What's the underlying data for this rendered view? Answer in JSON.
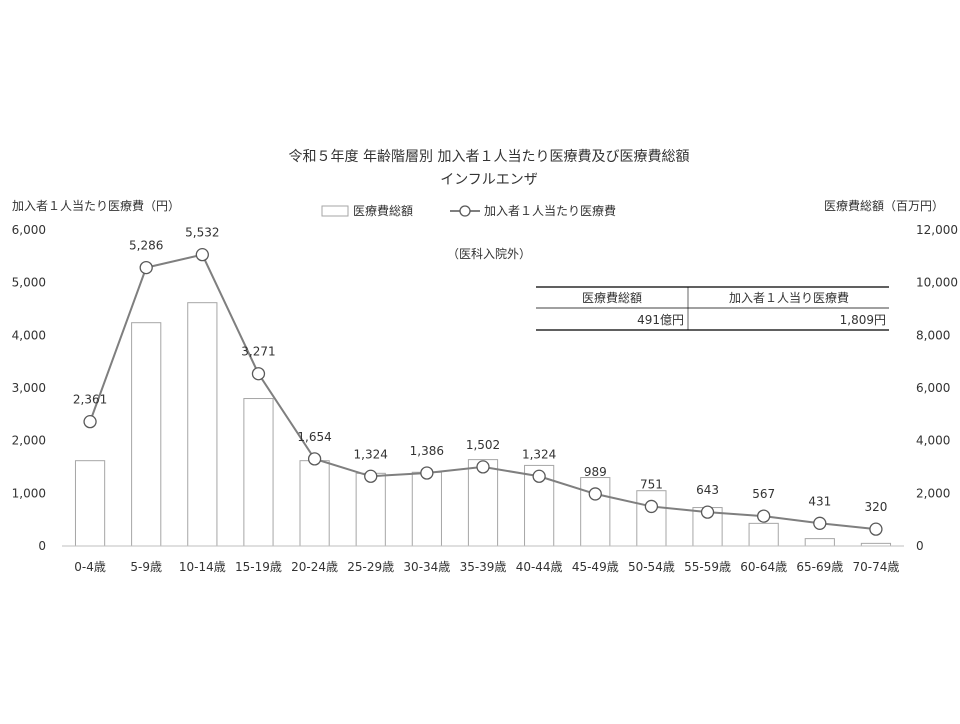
{
  "chart_data": {
    "type": "bar+line",
    "title": "令和５年度 年齢階層別 加入者１人当たり医療費及び医療費総額",
    "subtitle": "インフルエンザ",
    "note": "（医科入院外）",
    "y_left_label": "加入者１人当たり医療費（円）",
    "y_right_label": "医療費総額（百万円）",
    "y_left_lim": [
      0,
      6000
    ],
    "y_right_lim": [
      0,
      12000
    ],
    "y_left_ticks": [
      "0",
      "1,000",
      "2,000",
      "3,000",
      "4,000",
      "5,000",
      "6,000"
    ],
    "y_right_ticks": [
      "0",
      "2,000",
      "4,000",
      "6,000",
      "8,000",
      "10,000",
      "12,000"
    ],
    "categories": [
      "0-4歳",
      "5-9歳",
      "10-14歳",
      "15-19歳",
      "20-24歳",
      "25-29歳",
      "30-34歳",
      "35-39歳",
      "40-44歳",
      "45-49歳",
      "50-54歳",
      "55-59歳",
      "60-64歳",
      "65-69歳",
      "70-74歳"
    ],
    "grid": false,
    "legend_position": "top",
    "series": [
      {
        "name": "医療費総額",
        "type": "bar",
        "axis": "right",
        "values": [
          3240,
          8480,
          9240,
          5600,
          3240,
          2760,
          2800,
          3280,
          3060,
          2600,
          2100,
          1460,
          860,
          280,
          100
        ]
      },
      {
        "name": "加入者１人当たり医療費",
        "type": "line",
        "axis": "left",
        "values": [
          2361,
          5286,
          5532,
          3271,
          1654,
          1324,
          1386,
          1502,
          1324,
          989,
          751,
          643,
          567,
          431,
          320
        ],
        "labels": [
          "2,361",
          "5,286",
          "5,532",
          "3,271",
          "1,654",
          "1,324",
          "1,386",
          "1,502",
          "1,324",
          "989",
          "751",
          "643",
          "567",
          "431",
          "320"
        ]
      }
    ],
    "summary_table": {
      "headers": [
        "医療費総額",
        "加入者１人当り医療費"
      ],
      "values": [
        "491億円",
        "1,809円"
      ]
    },
    "colors": {
      "bar_fill": "#ffffff",
      "bar_stroke": "#a6a6a6",
      "line": "#7f7f7f",
      "marker_fill": "#ffffff",
      "marker_stroke": "#595959"
    }
  }
}
